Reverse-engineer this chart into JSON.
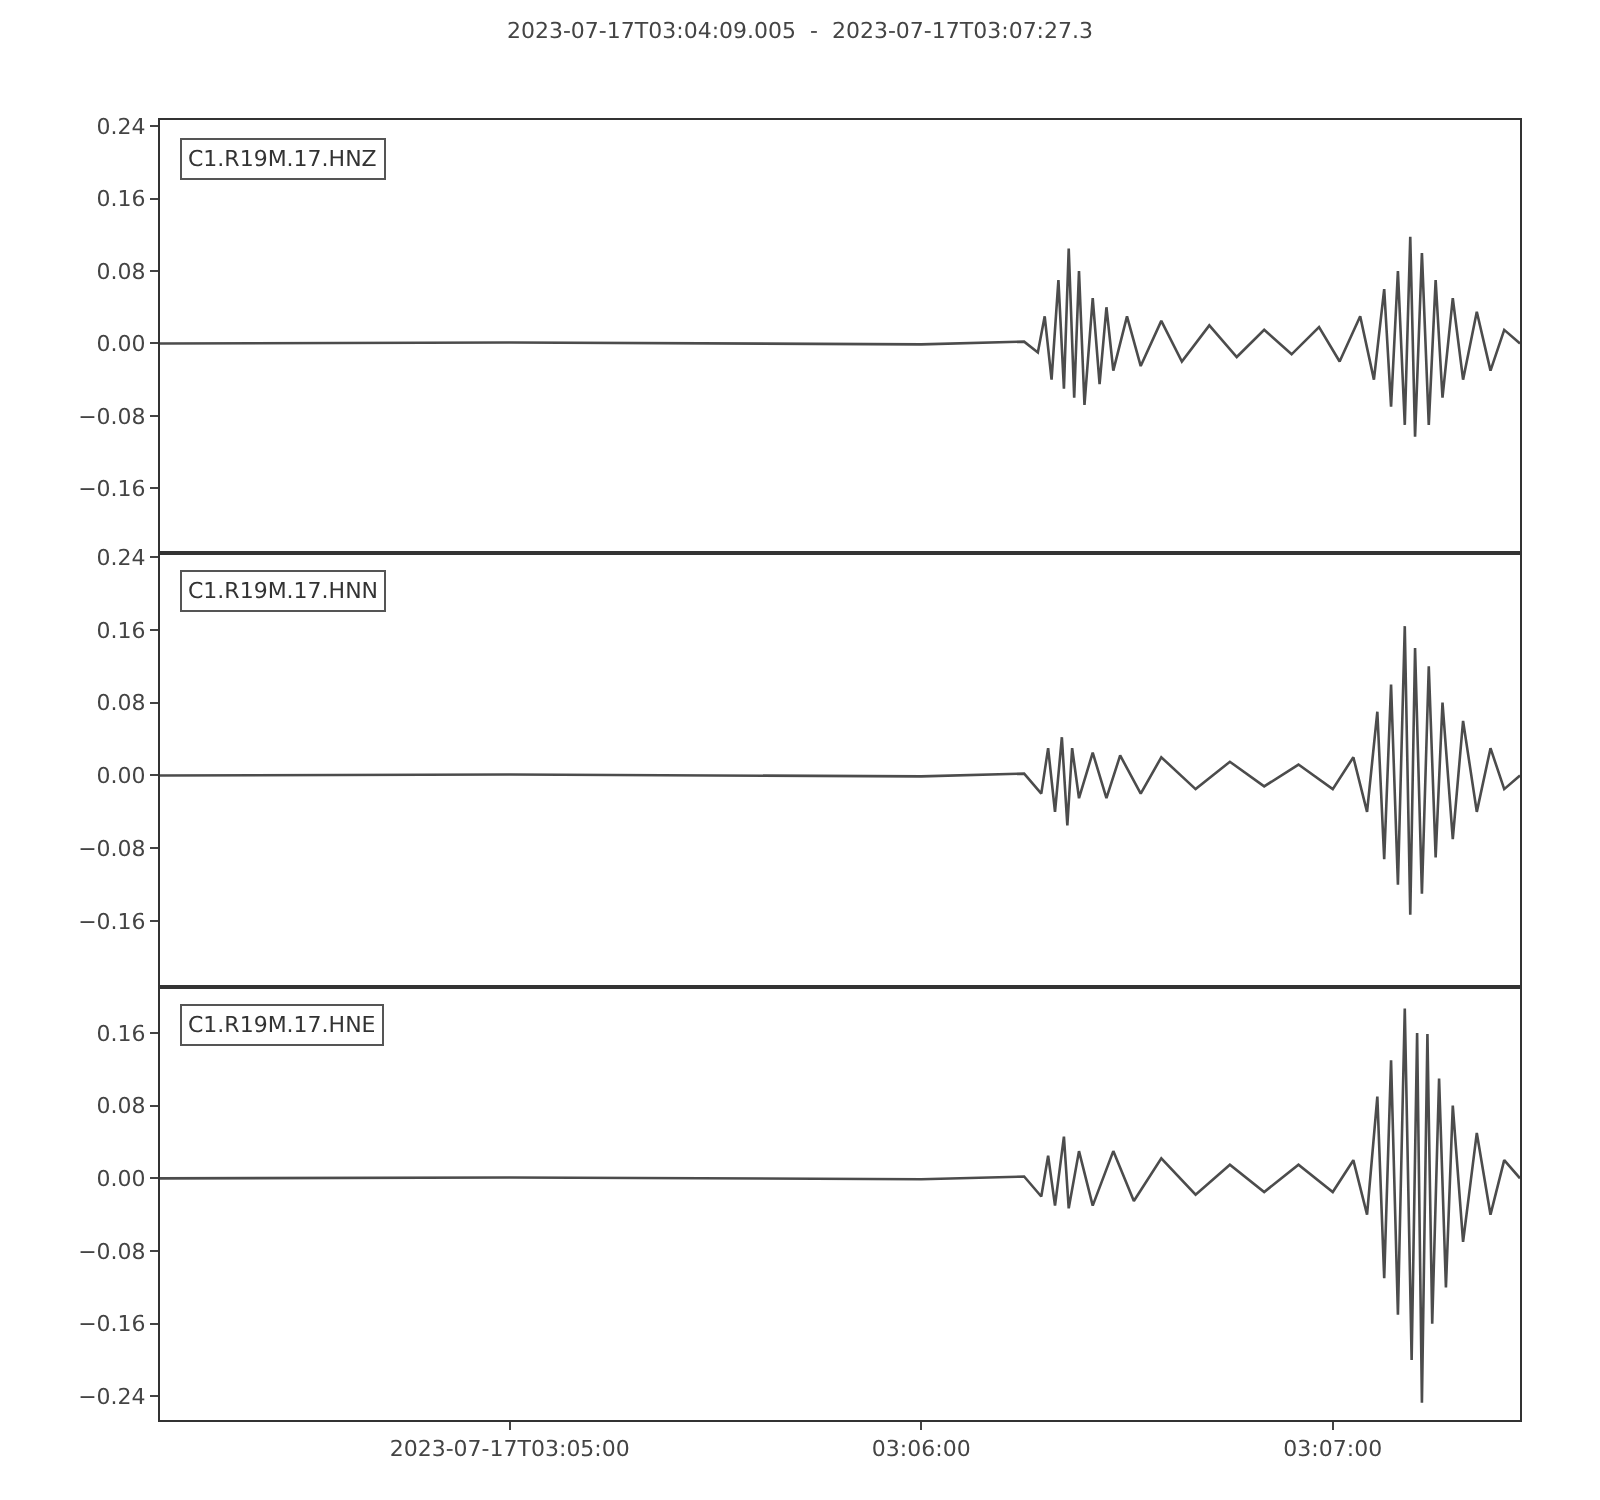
{
  "chart_data": [
    {
      "type": "line",
      "title": "2023-07-17T03:04:09.005  -  2023-07-17T03:07:27.3",
      "annotations": [
        "C1.R19M.17.HNZ"
      ],
      "grid": false,
      "marker": "none",
      "line_style": "solid",
      "tick_labels": "y",
      "xlim": [
        "2023-07-17T03:04:09.005",
        "2023-07-17T03:07:27.3"
      ],
      "ylim": [
        -0.232,
        0.247
      ],
      "yticks": [
        {
          "value": 0.24,
          "label": "0.24"
        },
        {
          "value": 0.16,
          "label": "0.16"
        },
        {
          "value": 0.08,
          "label": "0.08"
        },
        {
          "value": 0,
          "label": "0.00"
        },
        {
          "value": -0.08,
          "label": "−0.08"
        },
        {
          "value": -0.16,
          "label": "−0.16"
        }
      ],
      "series": [
        {
          "color": "#4c4c4c",
          "x": [
            "2023-07-17T03:04:09.005",
            "2023-07-17T03:05:00",
            "2023-07-17T03:06:00",
            "2023-07-17T03:06:15",
            "2023-07-17T03:06:17",
            "2023-07-17T03:06:18",
            "2023-07-17T03:06:19",
            "2023-07-17T03:06:20",
            "2023-07-17T03:06:20.8",
            "2023-07-17T03:06:21.5",
            "2023-07-17T03:06:22.3",
            "2023-07-17T03:06:23",
            "2023-07-17T03:06:23.8",
            "2023-07-17T03:06:25",
            "2023-07-17T03:06:26",
            "2023-07-17T03:06:27",
            "2023-07-17T03:06:28",
            "2023-07-17T03:06:30",
            "2023-07-17T03:06:32",
            "2023-07-17T03:06:35",
            "2023-07-17T03:06:38",
            "2023-07-17T03:06:42",
            "2023-07-17T03:06:46",
            "2023-07-17T03:06:50",
            "2023-07-17T03:06:54",
            "2023-07-17T03:06:58",
            "2023-07-17T03:07:01",
            "2023-07-17T03:07:04",
            "2023-07-17T03:07:06",
            "2023-07-17T03:07:07.5",
            "2023-07-17T03:07:08.5",
            "2023-07-17T03:07:09.5",
            "2023-07-17T03:07:10.5",
            "2023-07-17T03:07:11.3",
            "2023-07-17T03:07:12",
            "2023-07-17T03:07:13",
            "2023-07-17T03:07:14",
            "2023-07-17T03:07:15",
            "2023-07-17T03:07:16",
            "2023-07-17T03:07:17.5",
            "2023-07-17T03:07:19",
            "2023-07-17T03:07:21",
            "2023-07-17T03:07:23",
            "2023-07-17T03:07:25",
            "2023-07-17T03:07:27.3"
          ],
          "values": [
            0,
            0.001,
            -0.001,
            0.002,
            -0.01,
            0.03,
            -0.04,
            0.07,
            -0.05,
            0.105,
            -0.06,
            0.08,
            -0.068,
            0.05,
            -0.045,
            0.04,
            -0.03,
            0.03,
            -0.025,
            0.025,
            -0.02,
            0.02,
            -0.015,
            0.015,
            -0.012,
            0.018,
            -0.02,
            0.03,
            -0.04,
            0.06,
            -0.07,
            0.08,
            -0.09,
            0.118,
            -0.103,
            0.1,
            -0.09,
            0.07,
            -0.06,
            0.05,
            -0.04,
            0.035,
            -0.03,
            0.015,
            0
          ]
        }
      ]
    },
    {
      "type": "line",
      "annotations": [
        "C1.R19M.17.HNN"
      ],
      "grid": false,
      "marker": "none",
      "line_style": "solid",
      "tick_labels": "y",
      "xlim": [
        "2023-07-17T03:04:09.005",
        "2023-07-17T03:07:27.3"
      ],
      "ylim": [
        -0.232,
        0.244
      ],
      "yticks": [
        {
          "value": 0.24,
          "label": "0.24"
        },
        {
          "value": 0.16,
          "label": "0.16"
        },
        {
          "value": 0.08,
          "label": "0.08"
        },
        {
          "value": 0,
          "label": "0.00"
        },
        {
          "value": -0.08,
          "label": "−0.08"
        },
        {
          "value": -0.16,
          "label": "−0.16"
        }
      ],
      "series": [
        {
          "color": "#4c4c4c",
          "x": [
            "2023-07-17T03:04:09.005",
            "2023-07-17T03:05:00",
            "2023-07-17T03:06:00",
            "2023-07-17T03:06:15",
            "2023-07-17T03:06:17.5",
            "2023-07-17T03:06:18.5",
            "2023-07-17T03:06:19.5",
            "2023-07-17T03:06:20.5",
            "2023-07-17T03:06:21.3",
            "2023-07-17T03:06:22",
            "2023-07-17T03:06:23",
            "2023-07-17T03:06:25",
            "2023-07-17T03:06:27",
            "2023-07-17T03:06:29",
            "2023-07-17T03:06:32",
            "2023-07-17T03:06:35",
            "2023-07-17T03:06:40",
            "2023-07-17T03:06:45",
            "2023-07-17T03:06:50",
            "2023-07-17T03:06:55",
            "2023-07-17T03:07:00",
            "2023-07-17T03:07:03",
            "2023-07-17T03:07:05",
            "2023-07-17T03:07:06.5",
            "2023-07-17T03:07:07.5",
            "2023-07-17T03:07:08.5",
            "2023-07-17T03:07:09.5",
            "2023-07-17T03:07:10.5",
            "2023-07-17T03:07:11.3",
            "2023-07-17T03:07:12",
            "2023-07-17T03:07:13",
            "2023-07-17T03:07:14",
            "2023-07-17T03:07:15",
            "2023-07-17T03:07:16",
            "2023-07-17T03:07:17.5",
            "2023-07-17T03:07:19",
            "2023-07-17T03:07:21",
            "2023-07-17T03:07:23",
            "2023-07-17T03:07:25",
            "2023-07-17T03:07:27.3"
          ],
          "values": [
            0,
            0.001,
            -0.001,
            0.002,
            -0.02,
            0.03,
            -0.04,
            0.042,
            -0.055,
            0.03,
            -0.025,
            0.025,
            -0.025,
            0.022,
            -0.02,
            0.02,
            -0.015,
            0.015,
            -0.012,
            0.012,
            -0.015,
            0.02,
            -0.04,
            0.07,
            -0.092,
            0.1,
            -0.12,
            0.164,
            -0.153,
            0.14,
            -0.13,
            0.12,
            -0.09,
            0.08,
            -0.07,
            0.06,
            -0.04,
            0.03,
            -0.015,
            0
          ]
        }
      ]
    },
    {
      "type": "line",
      "annotations": [
        "C1.R19M.17.HNE"
      ],
      "grid": false,
      "marker": "none",
      "line_style": "solid",
      "xlim": [
        "2023-07-17T03:04:09.005",
        "2023-07-17T03:07:27.3"
      ],
      "xticks": [
        {
          "value": "2023-07-17T03:05:00",
          "label": "2023-07-17T03:05:00"
        },
        {
          "value": "2023-07-17T03:06:00",
          "label": "03:06:00"
        },
        {
          "value": "2023-07-17T03:07:00",
          "label": "03:07:00"
        }
      ],
      "ylim": [
        -0.266,
        0.211
      ],
      "yticks": [
        {
          "value": 0.16,
          "label": "0.16"
        },
        {
          "value": 0.08,
          "label": "0.08"
        },
        {
          "value": 0,
          "label": "0.00"
        },
        {
          "value": -0.08,
          "label": "−0.08"
        },
        {
          "value": -0.16,
          "label": "−0.16"
        },
        {
          "value": -0.24,
          "label": "−0.24"
        }
      ],
      "series": [
        {
          "color": "#4c4c4c",
          "x": [
            "2023-07-17T03:04:09.005",
            "2023-07-17T03:05:00",
            "2023-07-17T03:06:00",
            "2023-07-17T03:06:15",
            "2023-07-17T03:06:17.5",
            "2023-07-17T03:06:18.5",
            "2023-07-17T03:06:19.5",
            "2023-07-17T03:06:20.8",
            "2023-07-17T03:06:21.5",
            "2023-07-17T03:06:23",
            "2023-07-17T03:06:25",
            "2023-07-17T03:06:28",
            "2023-07-17T03:06:31",
            "2023-07-17T03:06:35",
            "2023-07-17T03:06:40",
            "2023-07-17T03:06:45",
            "2023-07-17T03:06:50",
            "2023-07-17T03:06:55",
            "2023-07-17T03:07:00",
            "2023-07-17T03:07:03",
            "2023-07-17T03:07:05",
            "2023-07-17T03:07:06.5",
            "2023-07-17T03:07:07.5",
            "2023-07-17T03:07:08.5",
            "2023-07-17T03:07:09.5",
            "2023-07-17T03:07:10.5",
            "2023-07-17T03:07:11.5",
            "2023-07-17T03:07:12.3",
            "2023-07-17T03:07:13",
            "2023-07-17T03:07:13.8",
            "2023-07-17T03:07:14.5",
            "2023-07-17T03:07:15.5",
            "2023-07-17T03:07:16.5",
            "2023-07-17T03:07:17.5",
            "2023-07-17T03:07:19",
            "2023-07-17T03:07:21",
            "2023-07-17T03:07:23",
            "2023-07-17T03:07:25",
            "2023-07-17T03:07:27.3"
          ],
          "values": [
            0,
            0.001,
            -0.001,
            0.002,
            -0.02,
            0.025,
            -0.03,
            0.046,
            -0.033,
            0.03,
            -0.03,
            0.03,
            -0.025,
            0.022,
            -0.018,
            0.015,
            -0.015,
            0.015,
            -0.015,
            0.02,
            -0.04,
            0.09,
            -0.11,
            0.13,
            -0.15,
            0.187,
            -0.2,
            0.16,
            -0.247,
            0.159,
            -0.16,
            0.11,
            -0.12,
            0.08,
            -0.07,
            0.05,
            -0.04,
            0.02,
            0
          ]
        }
      ]
    }
  ]
}
